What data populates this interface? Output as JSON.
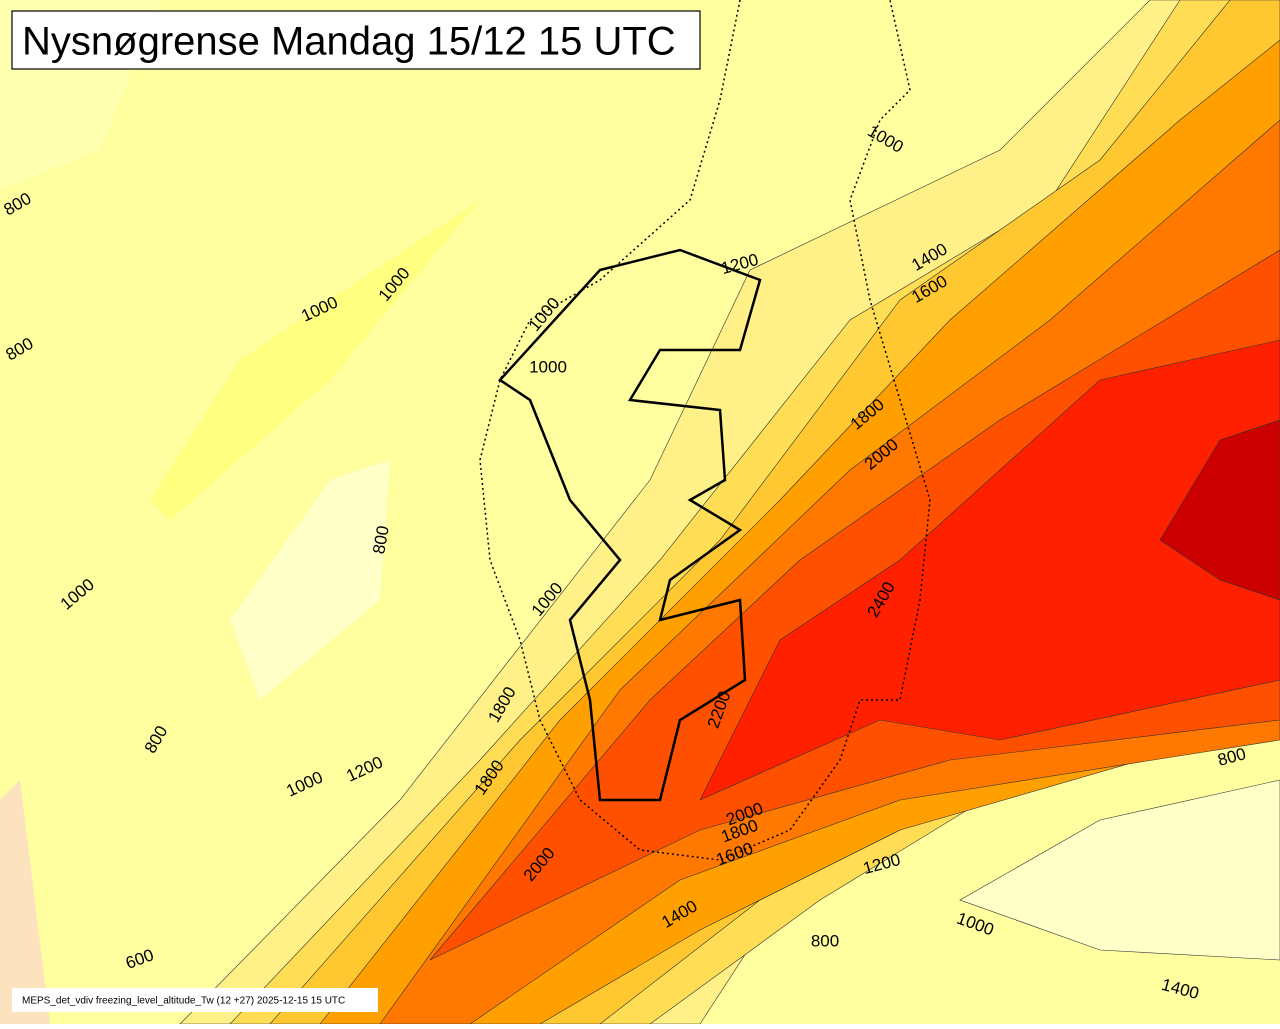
{
  "title": "Nysnøgrense Mandag 15/12 15 UTC",
  "footer": "MEPS_det_vdiv freezing_level_altitude_Tw (12 +27) 2025-12-15 15 UTC",
  "contour_labels": [
    800,
    800,
    1000,
    1000,
    1000,
    1000,
    1200,
    1000,
    1400,
    1600,
    1800,
    2000,
    2400,
    1000,
    800,
    1800,
    2200,
    800,
    1000,
    1200,
    1800,
    2000,
    1600,
    1800,
    2000,
    1400,
    1200,
    1000,
    800,
    800,
    1400,
    600,
    1000
  ]
}
